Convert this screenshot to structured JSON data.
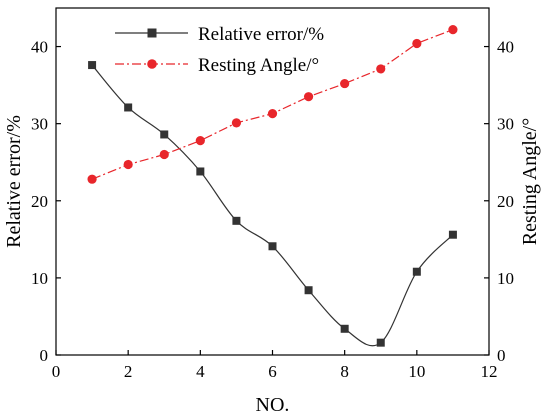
{
  "chart_data": {
    "type": "line",
    "title": "",
    "xlabel": "NO.",
    "ylabel_left": "Relative error/%",
    "ylabel_right": "Resting Angle/°",
    "xlim": [
      0,
      12
    ],
    "ylim_left": [
      0,
      45
    ],
    "ylim_right": [
      0,
      45
    ],
    "x_ticks": [
      0,
      2,
      4,
      6,
      8,
      10,
      12
    ],
    "y_ticks_left": [
      0,
      10,
      20,
      30,
      40
    ],
    "y_ticks_right": [
      0,
      10,
      20,
      30,
      40
    ],
    "grid": false,
    "legend_position": "top-center",
    "series": [
      {
        "name": "Relative error/%",
        "axis": "left",
        "color": "#333333",
        "marker": "square",
        "line_style": "solid",
        "x": [
          1,
          2,
          3,
          4,
          5,
          6,
          7,
          8,
          9,
          10,
          11
        ],
        "values": [
          37.6,
          32.1,
          28.6,
          23.8,
          17.4,
          14.1,
          8.4,
          3.4,
          1.6,
          10.8,
          15.6
        ]
      },
      {
        "name": "Resting Angle/°",
        "axis": "right",
        "color": "#e8262b",
        "marker": "circle",
        "line_style": "dash-dot",
        "x": [
          1,
          2,
          3,
          4,
          5,
          6,
          7,
          8,
          9,
          10,
          11
        ],
        "values": [
          22.8,
          24.7,
          26.0,
          27.8,
          30.1,
          31.3,
          33.5,
          35.2,
          37.1,
          40.4,
          42.2
        ]
      }
    ]
  }
}
